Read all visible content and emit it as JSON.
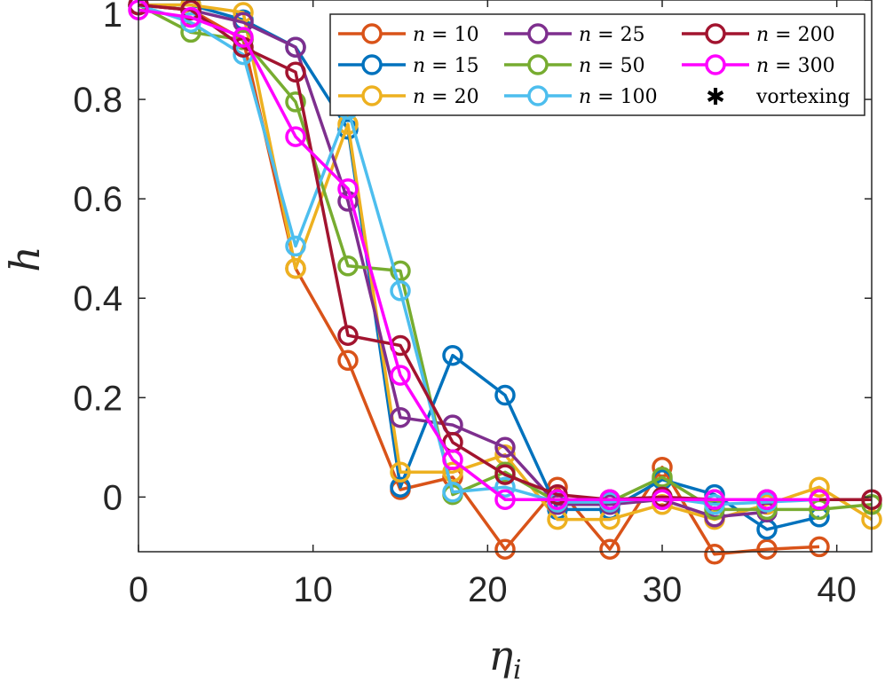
{
  "chart_data": {
    "type": "line",
    "xlabel": "η",
    "xlabel_sub": "i",
    "ylabel": "h",
    "xlim": [
      0,
      42
    ],
    "ylim": [
      -0.11,
      1
    ],
    "xticks": [
      0,
      10,
      20,
      30,
      40
    ],
    "yticks": [
      0,
      0.2,
      0.4,
      0.6,
      0.8,
      1
    ],
    "xtick_labels": [
      "0",
      "10",
      "20",
      "30",
      "40"
    ],
    "ytick_labels": [
      "0",
      "0.2",
      "0.4",
      "0.6",
      "0.8",
      "1"
    ],
    "legend_position": "top-right",
    "series": [
      {
        "name": "n = 10",
        "n_value": "10",
        "color": "#D95319",
        "x": [
          0,
          3,
          6,
          9,
          12,
          15,
          18,
          21,
          24,
          27,
          30,
          33,
          36,
          39
        ],
        "y": [
          0.99,
          0.98,
          0.92,
          0.46,
          0.275,
          0.015,
          0.04,
          -0.105,
          0.02,
          -0.105,
          0.06,
          -0.115,
          -0.105,
          -0.1
        ]
      },
      {
        "name": "n = 15",
        "n_value": "15",
        "color": "#0072BD",
        "x": [
          0,
          3,
          6,
          9,
          12,
          15,
          18,
          21,
          24,
          27,
          30,
          33,
          36,
          39
        ],
        "y": [
          0.99,
          0.99,
          0.96,
          0.905,
          0.74,
          0.02,
          0.285,
          0.205,
          -0.025,
          -0.025,
          0.035,
          0.005,
          -0.065,
          -0.04
        ]
      },
      {
        "name": "n = 20",
        "n_value": "20",
        "color": "#EDB120",
        "x": [
          0,
          3,
          6,
          9,
          12,
          15,
          18,
          21,
          24,
          27,
          30,
          33,
          36,
          39,
          42
        ],
        "y": [
          0.99,
          0.99,
          0.975,
          0.46,
          0.75,
          0.05,
          0.05,
          0.085,
          -0.045,
          -0.045,
          -0.015,
          -0.045,
          -0.015,
          0.02,
          -0.045
        ]
      },
      {
        "name": "n = 25",
        "n_value": "25",
        "color": "#7E2F8E",
        "x": [
          0,
          3,
          6,
          9,
          12,
          15,
          18,
          21,
          24,
          27,
          30,
          33,
          36
        ],
        "y": [
          0.99,
          0.98,
          0.955,
          0.905,
          0.595,
          0.16,
          0.145,
          0.1,
          -0.015,
          -0.015,
          -0.005,
          -0.04,
          -0.03
        ]
      },
      {
        "name": "n = 50",
        "n_value": "50",
        "color": "#77AC30",
        "x": [
          0,
          3,
          6,
          9,
          12,
          15,
          18,
          21,
          24,
          27,
          30,
          33,
          36,
          39,
          42
        ],
        "y": [
          0.99,
          0.935,
          0.92,
          0.795,
          0.465,
          0.455,
          0.005,
          0.05,
          -0.01,
          -0.01,
          0.04,
          -0.025,
          -0.025,
          -0.025,
          -0.015
        ]
      },
      {
        "name": "n = 100",
        "n_value": "100",
        "color": "#4DBEEE",
        "x": [
          0,
          3,
          6,
          9,
          12,
          15,
          18,
          21,
          24,
          27,
          30,
          33,
          36,
          39
        ],
        "y": [
          0.99,
          0.955,
          0.89,
          0.505,
          0.78,
          0.415,
          0.01,
          0.02,
          -0.01,
          -0.01,
          0.0,
          -0.015,
          -0.01,
          -0.005
        ]
      },
      {
        "name": "n = 200",
        "n_value": "200",
        "color": "#A2142F",
        "x": [
          0,
          3,
          6,
          9,
          12,
          15,
          18,
          21,
          24,
          27,
          30,
          33,
          36,
          39,
          42
        ],
        "y": [
          0.99,
          0.98,
          0.905,
          0.855,
          0.325,
          0.305,
          0.11,
          0.045,
          0.005,
          -0.005,
          0.0,
          -0.005,
          -0.005,
          -0.005,
          -0.005
        ]
      },
      {
        "name": "n = 300",
        "n_value": "300",
        "color": "#FF00FF",
        "x": [
          0,
          3,
          6,
          9,
          12,
          15,
          18,
          21,
          24,
          27,
          30,
          33,
          36,
          39
        ],
        "y": [
          0.98,
          0.965,
          0.925,
          0.725,
          0.62,
          0.245,
          0.075,
          -0.005,
          -0.005,
          -0.005,
          -0.005,
          -0.005,
          -0.005,
          -0.005
        ]
      }
    ],
    "legend": {
      "symbol_label": "n",
      "equals": "=",
      "vortexing_label": "vortexing",
      "vortexing_symbol": "✱",
      "vortexing_color": "#000000"
    }
  }
}
